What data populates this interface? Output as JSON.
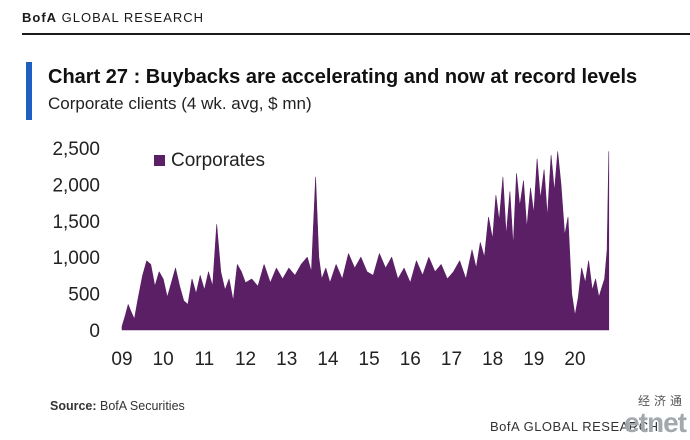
{
  "header": {
    "brand_bold": "BofA",
    "brand_rest": " GLOBAL RESEARCH"
  },
  "chart": {
    "title": "Chart 27 : Buybacks are accelerating and now at record levels",
    "subtitle": "Corporate clients (4 wk. avg, $ mn)",
    "accent_color": "#1f5fbf"
  },
  "chart_data": {
    "type": "area",
    "title": "Chart 27 : Buybacks are accelerating and now at record levels",
    "subtitle": "Corporate clients (4 wk. avg, $ mn)",
    "xlabel": "",
    "ylabel": "",
    "ylim": [
      0,
      2500
    ],
    "xlim": [
      2009.0,
      2020.85
    ],
    "y_ticks": [
      0,
      500,
      1000,
      1500,
      2000,
      2500
    ],
    "y_tick_labels": [
      "0",
      "500",
      "1,000",
      "1,500",
      "2,000",
      "2,500"
    ],
    "x_ticks": [
      2009,
      2010,
      2011,
      2012,
      2013,
      2014,
      2015,
      2016,
      2017,
      2018,
      2019,
      2020
    ],
    "x_tick_labels": [
      "09",
      "10",
      "11",
      "12",
      "13",
      "14",
      "15",
      "16",
      "17",
      "18",
      "19",
      "20"
    ],
    "grid": false,
    "legend_position": "top-left",
    "series": [
      {
        "name": "Corporates",
        "color": "#5b1f66",
        "x": [
          2009.0,
          2009.08,
          2009.15,
          2009.22,
          2009.3,
          2009.38,
          2009.5,
          2009.6,
          2009.7,
          2009.8,
          2009.9,
          2010.0,
          2010.1,
          2010.2,
          2010.3,
          2010.4,
          2010.5,
          2010.6,
          2010.7,
          2010.8,
          2010.9,
          2011.0,
          2011.1,
          2011.2,
          2011.3,
          2011.4,
          2011.5,
          2011.6,
          2011.7,
          2011.8,
          2011.9,
          2012.0,
          2012.15,
          2012.3,
          2012.45,
          2012.6,
          2012.75,
          2012.9,
          2013.05,
          2013.2,
          2013.35,
          2013.5,
          2013.6,
          2013.7,
          2013.78,
          2013.85,
          2013.95,
          2014.05,
          2014.2,
          2014.35,
          2014.5,
          2014.65,
          2014.8,
          2014.95,
          2015.1,
          2015.25,
          2015.4,
          2015.55,
          2015.7,
          2015.85,
          2016.0,
          2016.15,
          2016.3,
          2016.45,
          2016.6,
          2016.75,
          2016.9,
          2017.05,
          2017.2,
          2017.35,
          2017.5,
          2017.6,
          2017.7,
          2017.8,
          2017.9,
          2018.0,
          2018.08,
          2018.16,
          2018.25,
          2018.33,
          2018.42,
          2018.5,
          2018.58,
          2018.66,
          2018.75,
          2018.83,
          2018.92,
          2019.0,
          2019.08,
          2019.16,
          2019.25,
          2019.33,
          2019.42,
          2019.5,
          2019.58,
          2019.66,
          2019.75,
          2019.83,
          2019.92,
          2020.0,
          2020.08,
          2020.16,
          2020.25,
          2020.33,
          2020.42,
          2020.5,
          2020.58,
          2020.66,
          2020.72,
          2020.78,
          2020.82
        ],
        "values": [
          50,
          200,
          350,
          250,
          150,
          400,
          750,
          950,
          900,
          600,
          800,
          700,
          450,
          650,
          850,
          600,
          400,
          350,
          700,
          500,
          750,
          550,
          800,
          600,
          1450,
          800,
          550,
          700,
          400,
          900,
          800,
          650,
          700,
          600,
          900,
          650,
          850,
          700,
          850,
          750,
          900,
          1000,
          800,
          2100,
          1000,
          700,
          850,
          650,
          900,
          700,
          1050,
          850,
          1000,
          800,
          750,
          1050,
          850,
          1000,
          700,
          850,
          650,
          950,
          750,
          1000,
          800,
          900,
          700,
          800,
          950,
          700,
          1100,
          850,
          1200,
          1000,
          1550,
          1250,
          1850,
          1500,
          2100,
          1300,
          1900,
          1150,
          2150,
          1700,
          2050,
          1400,
          1950,
          1600,
          2350,
          1800,
          2200,
          1550,
          2400,
          1900,
          2450,
          2000,
          1300,
          1550,
          500,
          200,
          450,
          850,
          650,
          950,
          550,
          700,
          450,
          600,
          700,
          1100,
          2450
        ]
      }
    ],
    "source": "BofA Securities"
  },
  "footer": {
    "source_label": "Source:",
    "source_value": " BofA Securities",
    "brand": "BofA GLOBAL RESEARCH"
  },
  "watermark": {
    "cn_text": "经济通",
    "main_text": "etnet"
  }
}
